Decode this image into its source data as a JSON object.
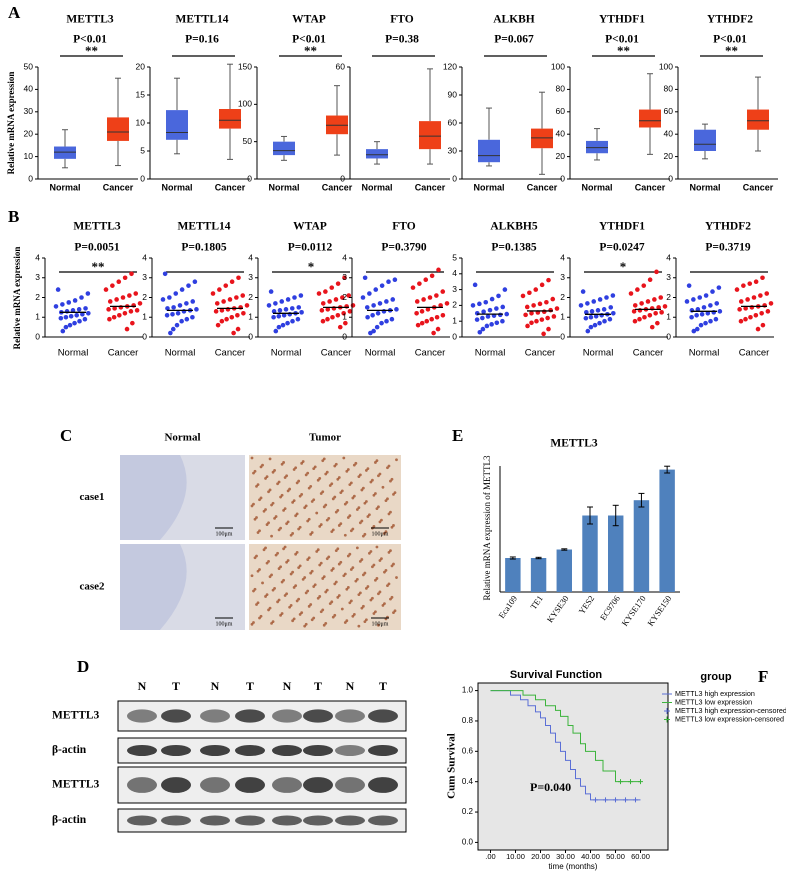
{
  "panel_labels": [
    "A",
    "B",
    "C",
    "D",
    "E",
    "F"
  ],
  "chart_data": [
    {
      "type": "box",
      "title": "METTL3",
      "annotation": "P<0.01",
      "significance": "**",
      "ylabel": "Relative mRNA expression",
      "categories": [
        "Normal",
        "Cancer"
      ],
      "colors": [
        "#4a67dc",
        "#ee4018"
      ],
      "boxes": [
        [
          5,
          9,
          12,
          14.5,
          22
        ],
        [
          6,
          17,
          21,
          27.5,
          45
        ]
      ],
      "ylim": [
        0,
        50
      ],
      "yticks": [
        0,
        10,
        20,
        30,
        40,
        50
      ]
    },
    {
      "type": "box",
      "title": "METTL14",
      "annotation": "P=0.16",
      "categories": [
        "Normal",
        "Cancer"
      ],
      "colors": [
        "#4a67dc",
        "#ee4018"
      ],
      "boxes": [
        [
          4.5,
          7,
          8.3,
          12.3,
          18
        ],
        [
          3.5,
          9,
          10.5,
          12.5,
          20.5
        ]
      ],
      "ylim": [
        0,
        20
      ],
      "yticks": [
        0,
        5,
        10,
        15,
        20
      ]
    },
    {
      "type": "box",
      "title": "WTAP",
      "annotation": "P<0.01",
      "significance": "**",
      "categories": [
        "Normal",
        "Cancer"
      ],
      "colors": [
        "#4a67dc",
        "#ee4018"
      ],
      "boxes": [
        [
          25,
          32,
          38,
          50,
          57
        ],
        [
          32,
          60,
          72,
          85,
          125
        ]
      ],
      "ylim": [
        0,
        150
      ],
      "yticks": [
        0,
        50,
        100,
        150
      ]
    },
    {
      "type": "box",
      "title": "FTO",
      "annotation": "P=0.38",
      "categories": [
        "Normal",
        "Cancer"
      ],
      "colors": [
        "#4a67dc",
        "#ee4018"
      ],
      "boxes": [
        [
          8,
          11,
          13,
          16,
          20
        ],
        [
          8,
          16,
          23,
          31,
          59
        ]
      ],
      "ylim": [
        0,
        60
      ],
      "yticks": [
        0,
        60
      ]
    },
    {
      "type": "box",
      "title": "ALKBH",
      "annotation": "P=0.067",
      "categories": [
        "Normal",
        "Cancer"
      ],
      "colors": [
        "#4a67dc",
        "#ee4018"
      ],
      "boxes": [
        [
          14,
          18,
          25,
          42,
          76
        ],
        [
          5,
          33,
          44,
          54,
          93
        ]
      ],
      "ylim": [
        0,
        120
      ],
      "yticks": [
        0,
        30,
        60,
        90,
        120
      ]
    },
    {
      "type": "box",
      "title": "YTHDF1",
      "annotation": "P<0.01",
      "significance": "**",
      "categories": [
        "Normal",
        "Cancer"
      ],
      "colors": [
        "#4a67dc",
        "#ee4018"
      ],
      "boxes": [
        [
          17,
          23,
          28,
          34,
          45
        ],
        [
          22,
          46,
          52,
          62,
          94
        ]
      ],
      "ylim": [
        0,
        100
      ],
      "yticks": [
        0,
        20,
        40,
        60,
        80,
        100
      ]
    },
    {
      "type": "box",
      "title": "YTHDF2",
      "annotation": "P<0.01",
      "significance": "**",
      "categories": [
        "Normal",
        "Cancer"
      ],
      "colors": [
        "#4a67dc",
        "#ee4018"
      ],
      "boxes": [
        [
          18,
          25,
          31,
          44,
          49
        ],
        [
          25,
          44,
          52,
          62,
          91
        ]
      ],
      "ylim": [
        0,
        100
      ],
      "yticks": [
        0,
        20,
        40,
        60,
        80,
        100
      ]
    },
    {
      "type": "scatter",
      "title": "METTL3",
      "annotation": "P=0.0051",
      "significance": "**",
      "ylabel": "Relative mRNA expression",
      "categories": [
        "Normal",
        "Cancer"
      ],
      "colors": [
        "#2f3fe0",
        "#e8141c"
      ],
      "ylim": [
        0,
        4
      ],
      "yticks": [
        0,
        1,
        2,
        3,
        4
      ],
      "means": [
        1.25,
        1.55
      ],
      "values": [
        [
          0.3,
          0.5,
          0.6,
          0.7,
          0.8,
          0.9,
          0.95,
          1.0,
          1.05,
          1.1,
          1.15,
          1.2,
          1.25,
          1.3,
          1.35,
          1.4,
          1.45,
          1.55,
          1.65,
          1.75,
          1.85,
          2.0,
          2.2,
          2.4
        ],
        [
          0.4,
          0.7,
          0.9,
          1.0,
          1.1,
          1.2,
          1.3,
          1.35,
          1.4,
          1.45,
          1.5,
          1.55,
          1.6,
          1.7,
          1.8,
          1.9,
          2.0,
          2.1,
          2.2,
          2.4,
          2.6,
          2.8,
          3.0,
          3.2
        ]
      ]
    },
    {
      "type": "scatter",
      "title": "METTL14",
      "annotation": "P=0.1805",
      "categories": [
        "Normal",
        "Cancer"
      ],
      "colors": [
        "#2f3fe0",
        "#e8141c"
      ],
      "ylim": [
        0,
        4
      ],
      "yticks": [
        0,
        1,
        2,
        3,
        4
      ],
      "means": [
        1.35,
        1.45
      ],
      "values": [
        [
          0.2,
          0.4,
          0.6,
          0.8,
          0.9,
          1.0,
          1.1,
          1.15,
          1.2,
          1.3,
          1.35,
          1.4,
          1.45,
          1.5,
          1.6,
          1.7,
          1.8,
          1.9,
          2.0,
          2.2,
          2.4,
          2.6,
          2.8,
          3.2
        ],
        [
          0.2,
          0.4,
          0.6,
          0.8,
          0.9,
          1.0,
          1.1,
          1.2,
          1.3,
          1.35,
          1.4,
          1.45,
          1.5,
          1.6,
          1.7,
          1.8,
          1.9,
          2.0,
          2.1,
          2.2,
          2.4,
          2.6,
          2.8,
          3.0
        ]
      ]
    },
    {
      "type": "scatter",
      "title": "WTAP",
      "annotation": "P=0.0112",
      "significance": "*",
      "categories": [
        "Normal",
        "Cancer"
      ],
      "colors": [
        "#2f3fe0",
        "#e8141c"
      ],
      "ylim": [
        0,
        4
      ],
      "yticks": [
        0,
        1,
        2,
        3,
        4
      ],
      "means": [
        1.2,
        1.5
      ],
      "values": [
        [
          0.3,
          0.5,
          0.6,
          0.7,
          0.8,
          0.9,
          1.0,
          1.05,
          1.1,
          1.15,
          1.2,
          1.25,
          1.3,
          1.35,
          1.4,
          1.45,
          1.5,
          1.6,
          1.7,
          1.8,
          1.9,
          2.0,
          2.1,
          2.3
        ],
        [
          0.5,
          0.7,
          0.8,
          0.9,
          1.0,
          1.1,
          1.2,
          1.3,
          1.35,
          1.4,
          1.45,
          1.5,
          1.55,
          1.6,
          1.7,
          1.8,
          1.9,
          2.0,
          2.1,
          2.2,
          2.3,
          2.5,
          2.7,
          3.0
        ]
      ]
    },
    {
      "type": "scatter",
      "title": "FTO",
      "annotation": "P=0.3790",
      "categories": [
        "Normal",
        "Cancer"
      ],
      "colors": [
        "#2f3fe0",
        "#e8141c"
      ],
      "ylim": [
        0,
        4
      ],
      "yticks": [
        0,
        1,
        2,
        3,
        4
      ],
      "means": [
        1.35,
        1.5
      ],
      "values": [
        [
          0.2,
          0.3,
          0.5,
          0.7,
          0.8,
          0.9,
          1.0,
          1.1,
          1.2,
          1.3,
          1.35,
          1.4,
          1.5,
          1.6,
          1.7,
          1.8,
          1.9,
          2.0,
          2.2,
          2.4,
          2.6,
          2.8,
          2.9,
          3.0
        ],
        [
          0.2,
          0.4,
          0.6,
          0.7,
          0.8,
          0.9,
          1.0,
          1.1,
          1.2,
          1.3,
          1.4,
          1.5,
          1.6,
          1.7,
          1.8,
          1.9,
          2.0,
          2.1,
          2.3,
          2.5,
          2.7,
          2.9,
          3.1,
          3.4
        ]
      ]
    },
    {
      "type": "scatter",
      "title": "ALKBH5",
      "annotation": "P=0.1385",
      "categories": [
        "Normal",
        "Cancer"
      ],
      "colors": [
        "#2f3fe0",
        "#e8141c"
      ],
      "ylim": [
        0,
        5
      ],
      "yticks": [
        0,
        1,
        2,
        3,
        4,
        5
      ],
      "means": [
        1.45,
        1.65
      ],
      "values": [
        [
          0.3,
          0.5,
          0.7,
          0.8,
          0.9,
          1.0,
          1.1,
          1.2,
          1.3,
          1.35,
          1.4,
          1.45,
          1.5,
          1.6,
          1.7,
          1.8,
          1.9,
          2.0,
          2.1,
          2.2,
          2.4,
          2.6,
          3.0,
          3.3
        ],
        [
          0.2,
          0.5,
          0.7,
          0.9,
          1.0,
          1.1,
          1.2,
          1.3,
          1.4,
          1.5,
          1.55,
          1.6,
          1.7,
          1.8,
          1.9,
          2.0,
          2.1,
          2.2,
          2.4,
          2.6,
          2.8,
          3.0,
          3.3,
          3.6
        ]
      ]
    },
    {
      "type": "scatter",
      "title": "YTHDF1",
      "annotation": "P=0.0247",
      "significance": "*",
      "categories": [
        "Normal",
        "Cancer"
      ],
      "colors": [
        "#2f3fe0",
        "#e8141c"
      ],
      "ylim": [
        0,
        4
      ],
      "yticks": [
        0,
        1,
        2,
        3,
        4
      ],
      "means": [
        1.15,
        1.4
      ],
      "values": [
        [
          0.3,
          0.5,
          0.6,
          0.7,
          0.8,
          0.9,
          0.95,
          1.0,
          1.05,
          1.1,
          1.15,
          1.2,
          1.25,
          1.3,
          1.35,
          1.4,
          1.5,
          1.6,
          1.7,
          1.8,
          1.9,
          2.0,
          2.1,
          2.3
        ],
        [
          0.5,
          0.7,
          0.8,
          0.9,
          1.0,
          1.1,
          1.2,
          1.25,
          1.3,
          1.35,
          1.4,
          1.45,
          1.5,
          1.55,
          1.6,
          1.7,
          1.8,
          1.9,
          2.0,
          2.2,
          2.4,
          2.6,
          2.9,
          3.3
        ]
      ]
    },
    {
      "type": "scatter",
      "title": "YTHDF2",
      "annotation": "P=0.3719",
      "categories": [
        "Normal",
        "Cancer"
      ],
      "colors": [
        "#2f3fe0",
        "#e8141c"
      ],
      "ylim": [
        0,
        4
      ],
      "yticks": [
        0,
        1,
        2,
        3,
        4
      ],
      "means": [
        1.3,
        1.55
      ],
      "values": [
        [
          0.3,
          0.4,
          0.6,
          0.7,
          0.8,
          0.9,
          1.0,
          1.1,
          1.15,
          1.2,
          1.25,
          1.3,
          1.35,
          1.4,
          1.5,
          1.6,
          1.7,
          1.8,
          1.9,
          2.0,
          2.1,
          2.3,
          2.5,
          2.6
        ],
        [
          0.4,
          0.6,
          0.8,
          0.9,
          1.0,
          1.1,
          1.2,
          1.3,
          1.4,
          1.45,
          1.5,
          1.55,
          1.6,
          1.7,
          1.8,
          1.9,
          2.0,
          2.1,
          2.2,
          2.4,
          2.6,
          2.7,
          2.8,
          3.0
        ]
      ]
    },
    {
      "type": "bar",
      "title": "METTL3",
      "ylabel": "Relative mRNA expression of METTL3",
      "categories": [
        "Eca109",
        "TE1",
        "KYSE30",
        "YES2",
        "EC9706",
        "KYSE170",
        "KYSE150"
      ],
      "values": [
        1.0,
        1.0,
        1.25,
        2.25,
        2.25,
        2.7,
        3.6
      ],
      "errors": [
        0.03,
        0.02,
        0.02,
        0.25,
        0.3,
        0.2,
        0.1
      ],
      "color": "#4f81bd",
      "ylim": [
        0,
        4
      ]
    },
    {
      "type": "line",
      "title": "Survival Function",
      "xlabel": "time (months)",
      "ylabel": "Cum Survival",
      "annotation": "P=0.040",
      "legend_title": "group",
      "xlim": [
        -5,
        71
      ],
      "ylim": [
        -0.05,
        1.05
      ],
      "xticks": [
        {
          "value": 0,
          "label": ".00"
        },
        {
          "value": 10,
          "label": "10.00"
        },
        {
          "value": 20,
          "label": "20.00"
        },
        {
          "value": 30,
          "label": "30.00"
        },
        {
          "value": 40,
          "label": "40.00"
        },
        {
          "value": 50,
          "label": "50.00"
        },
        {
          "value": 60,
          "label": "60.00"
        }
      ],
      "yticks": [
        {
          "value": 0,
          "label": "0.0"
        },
        0.2,
        0.4,
        0.6,
        0.8,
        {
          "value": 1,
          "label": "1.0"
        }
      ],
      "series": [
        {
          "name": "METTL3 high expression",
          "color": "#5b6fd6",
          "style": "step",
          "x": [
            0,
            8,
            12,
            15,
            18,
            20,
            22,
            24,
            26,
            28,
            30,
            32,
            34,
            36,
            38,
            40,
            60
          ],
          "values": [
            1,
            0.97,
            0.94,
            0.9,
            0.86,
            0.82,
            0.77,
            0.72,
            0.66,
            0.6,
            0.54,
            0.48,
            0.42,
            0.37,
            0.32,
            0.28,
            0.28
          ]
        },
        {
          "name": "METTL3 low expression",
          "color": "#3cb43c",
          "style": "step",
          "x": [
            0,
            13,
            18,
            22,
            26,
            28,
            31,
            33,
            36,
            38,
            42,
            45,
            50,
            60
          ],
          "values": [
            1,
            0.97,
            0.94,
            0.9,
            0.87,
            0.83,
            0.77,
            0.72,
            0.65,
            0.6,
            0.54,
            0.47,
            0.4,
            0.4
          ]
        },
        {
          "name": "METTL3 high expression-censored",
          "color": "#5b6fd6",
          "style": "censored",
          "x": [
            42,
            46,
            50,
            54,
            58
          ],
          "values": [
            0.28,
            0.28,
            0.28,
            0.28,
            0.28
          ]
        },
        {
          "name": "METTL3 low expression-censored",
          "color": "#3cb43c",
          "style": "censored",
          "x": [
            52,
            56,
            60
          ],
          "values": [
            0.4,
            0.4,
            0.4
          ]
        }
      ]
    }
  ],
  "ihc": {
    "columns": [
      "Normal",
      "Tumor"
    ],
    "rows": [
      "case1",
      "case2"
    ],
    "scale_bar": "100μm"
  },
  "western": {
    "lanes": [
      "N",
      "T",
      "N",
      "T",
      "N",
      "T",
      "N",
      "T"
    ],
    "rows": [
      "METTL3",
      "β-actin",
      "METTL3",
      "β-actin"
    ]
  }
}
